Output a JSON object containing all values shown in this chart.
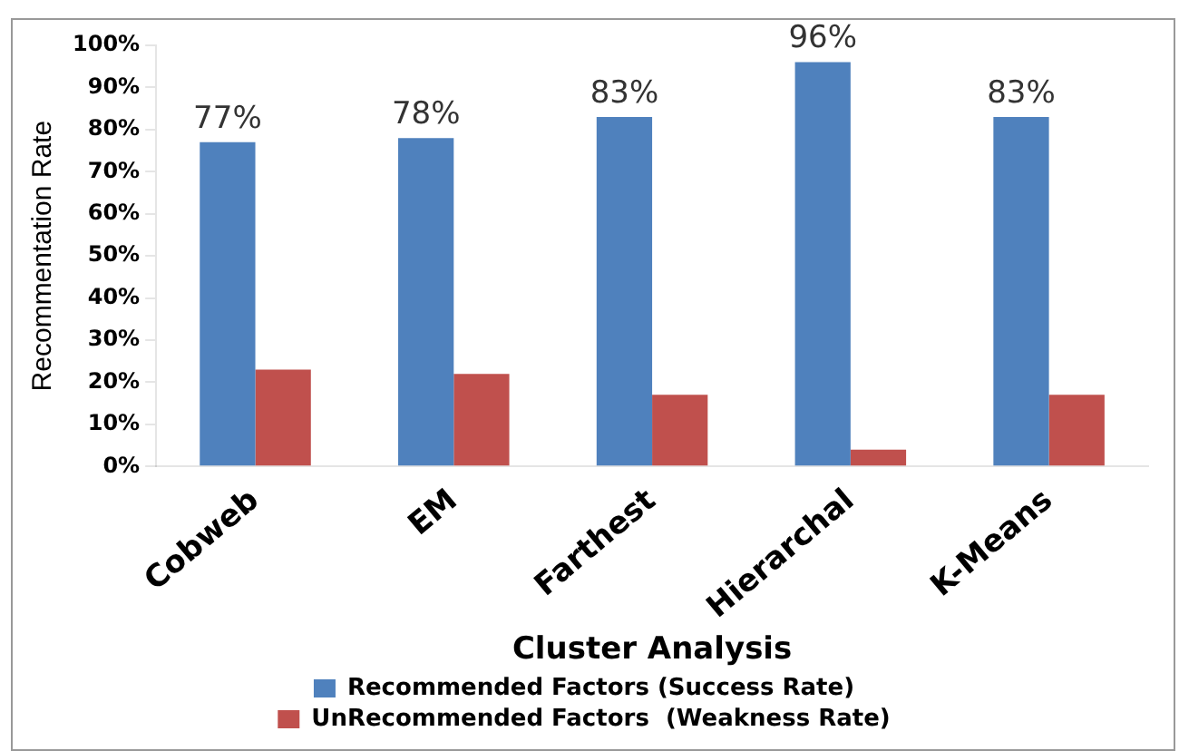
{
  "chart_data": {
    "type": "bar",
    "xlabel": "Cluster Analysis",
    "ylabel": "Recommentation Rate",
    "categories": [
      "Cobweb",
      "EM",
      "Farthest",
      "Hierarchal",
      "K-Means"
    ],
    "series": [
      {
        "name": "Recommended Factors (Success Rate)",
        "color": "#4f81bd",
        "values": [
          77,
          78,
          83,
          96,
          83
        ],
        "value_labels": [
          "77%",
          "78%",
          "83%",
          "96%",
          "83%"
        ]
      },
      {
        "name": "UnRecommended Factors  (Weakness Rate)",
        "color": "#c0504d",
        "values": [
          23,
          22,
          17,
          4,
          17
        ]
      }
    ],
    "ylim": [
      0,
      100
    ],
    "yticks": [
      {
        "value": 0,
        "label": "0%"
      },
      {
        "value": 10,
        "label": "10%"
      },
      {
        "value": 20,
        "label": "20%"
      },
      {
        "value": 30,
        "label": "30%"
      },
      {
        "value": 40,
        "label": "40%"
      },
      {
        "value": 50,
        "label": "50%"
      },
      {
        "value": 60,
        "label": "60%"
      },
      {
        "value": 70,
        "label": "70%"
      },
      {
        "value": 80,
        "label": "80%"
      },
      {
        "value": 90,
        "label": "90%"
      },
      {
        "value": 100,
        "label": "100%"
      }
    ],
    "grid": false,
    "legend": "bottom"
  }
}
